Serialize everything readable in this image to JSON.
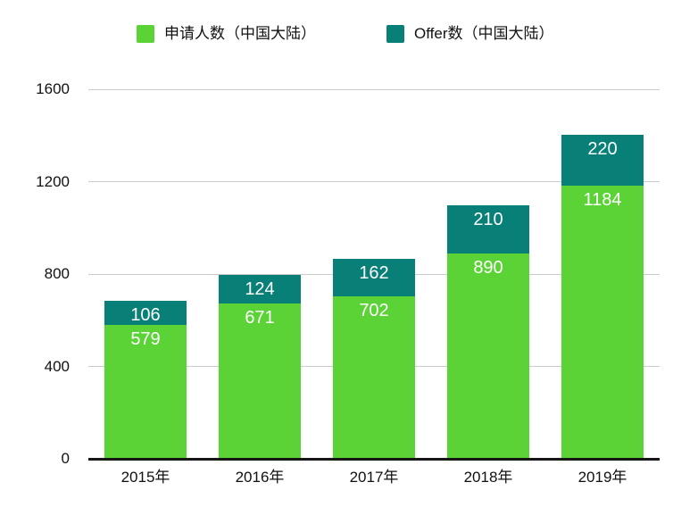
{
  "chart_data": {
    "type": "bar",
    "stacked": true,
    "title": "",
    "categories": [
      "2015年",
      "2016年",
      "2017年",
      "2018年",
      "2019年"
    ],
    "series": [
      {
        "name": "申请人数（中国大陆）",
        "color": "#5bd336",
        "values": [
          579,
          671,
          702,
          890,
          1184
        ]
      },
      {
        "name": "Offer数（中国大陆）",
        "color": "#087f77",
        "values": [
          106,
          124,
          162,
          210,
          220
        ]
      }
    ],
    "ylim": [
      0,
      1600
    ],
    "yticks": [
      0,
      400,
      800,
      1200,
      1600
    ],
    "grid": true,
    "legend_position": "top",
    "value_labels_position": "inside-top",
    "value_label_color": "#ffffff",
    "grid_color": "#cbcbcb",
    "axis_line_color": "#161616",
    "text_color": "#111111",
    "background_color": "#ffffff"
  }
}
